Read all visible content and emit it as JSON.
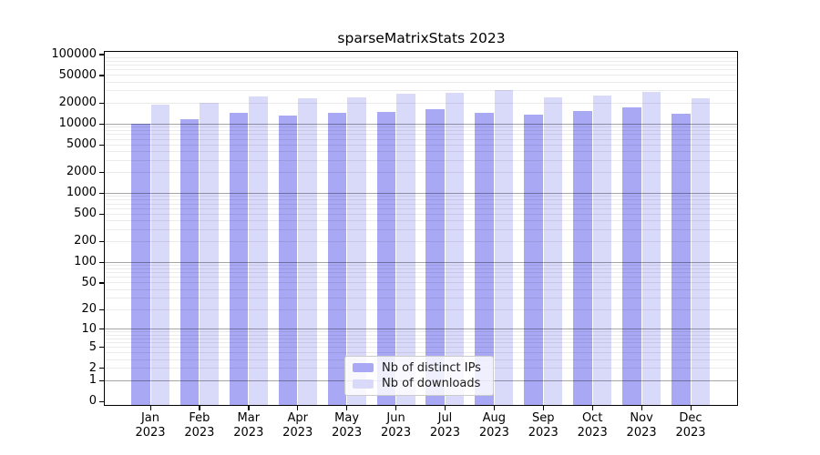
{
  "title": "sparseMatrixStats 2023",
  "legend": {
    "items": [
      {
        "label": "Nb of distinct IPs",
        "color": "#a8a8f5"
      },
      {
        "label": "Nb of downloads",
        "color": "#d9d9fa"
      }
    ]
  },
  "y_axis": {
    "tick_labels": [
      "100000",
      "50000",
      "20000",
      "10000",
      "5000",
      "2000",
      "1000",
      "500",
      "200",
      "100",
      "50",
      "20",
      "10",
      "5",
      "2",
      "1",
      "0"
    ]
  },
  "x_axis": {
    "ticks": [
      {
        "month": "Jan",
        "year": "2023"
      },
      {
        "month": "Feb",
        "year": "2023"
      },
      {
        "month": "Mar",
        "year": "2023"
      },
      {
        "month": "Apr",
        "year": "2023"
      },
      {
        "month": "May",
        "year": "2023"
      },
      {
        "month": "Jun",
        "year": "2023"
      },
      {
        "month": "Jul",
        "year": "2023"
      },
      {
        "month": "Aug",
        "year": "2023"
      },
      {
        "month": "Sep",
        "year": "2023"
      },
      {
        "month": "Oct",
        "year": "2023"
      },
      {
        "month": "Nov",
        "year": "2023"
      },
      {
        "month": "Dec",
        "year": "2023"
      }
    ]
  },
  "chart_data": {
    "type": "bar",
    "title": "sparseMatrixStats 2023",
    "categories": [
      "Jan 2023",
      "Feb 2023",
      "Mar 2023",
      "Apr 2023",
      "May 2023",
      "Jun 2023",
      "Jul 2023",
      "Aug 2023",
      "Sep 2023",
      "Oct 2023",
      "Nov 2023",
      "Dec 2023"
    ],
    "series": [
      {
        "name": "Nb of distinct IPs",
        "color": "#a8a8f5",
        "values": [
          10100,
          11700,
          14600,
          13400,
          14300,
          14700,
          16500,
          14400,
          13500,
          15500,
          17200,
          14000
        ]
      },
      {
        "name": "Nb of downloads",
        "color": "#d9d9fa",
        "values": [
          18900,
          20400,
          25100,
          23200,
          24400,
          27000,
          28300,
          30500,
          24000,
          25400,
          29200,
          23200
        ]
      }
    ],
    "yscale": "log10(1+v)",
    "ylim": [
      0,
      100000
    ],
    "y_ticks": [
      0,
      1,
      2,
      5,
      10,
      20,
      50,
      100,
      200,
      500,
      1000,
      2000,
      5000,
      10000,
      20000,
      50000,
      100000
    ],
    "grid": "horizontal-with-log-minors",
    "legend_position": "inside-bottom-center"
  }
}
